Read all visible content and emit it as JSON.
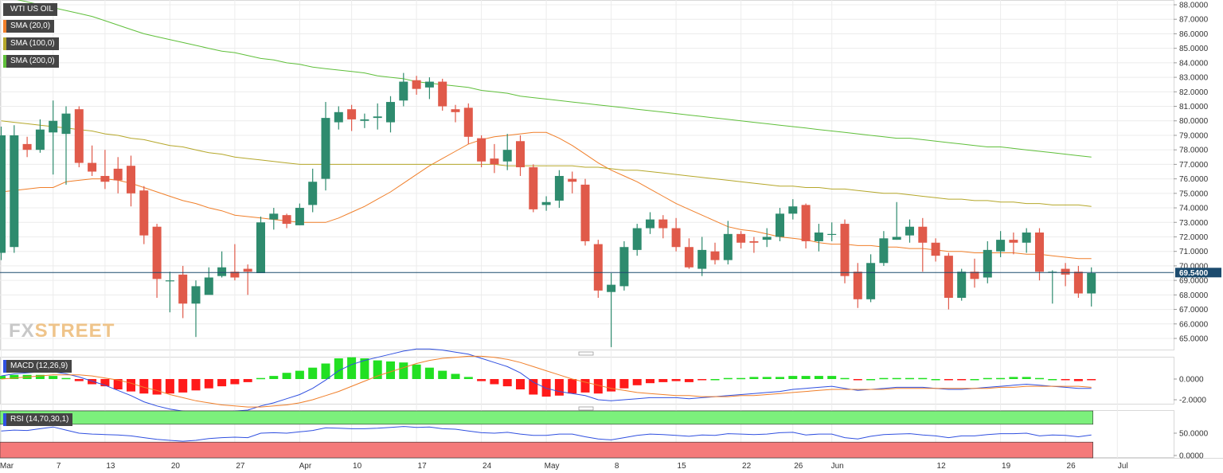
{
  "colors": {
    "bull": "#2e8b6e",
    "bear": "#e05a4a",
    "sma20": "#f07f2a",
    "sma100": "#b5a72a",
    "sma200": "#5fbf3a",
    "macd": "#3050e0",
    "signal": "#f07f2a",
    "histPos": "#22e022",
    "histNeg": "#ff1a1a",
    "rsi": "#3050e0",
    "rsiUpper": "#7cf07c",
    "rsiLower": "#f47a7a",
    "price": "#1c4b6e"
  },
  "watermark": {
    "fx": "FX",
    "street": "STREET"
  },
  "chart_data": {
    "type": "candlestick",
    "title": "WTI US OIL",
    "legend": [
      "WTI US OIL",
      "SMA (20,0)",
      "SMA (100,0)",
      "SMA (200,0)"
    ],
    "last_price": "69.5400",
    "price_axis": {
      "ylim": [
        64.0,
        88.6
      ],
      "ticks": [
        "88.0000",
        "87.0000",
        "86.0000",
        "85.0000",
        "84.0000",
        "83.0000",
        "82.0000",
        "81.0000",
        "80.0000",
        "79.0000",
        "78.0000",
        "77.0000",
        "76.0000",
        "75.0000",
        "74.0000",
        "73.0000",
        "72.0000",
        "71.0000",
        "70.0000",
        "69.0000",
        "68.0000",
        "67.0000",
        "66.0000",
        "65.0000"
      ]
    },
    "x_labels": [
      {
        "label": "Mar",
        "i": 0
      },
      {
        "label": "7",
        "i": 4
      },
      {
        "label": "13",
        "i": 8
      },
      {
        "label": "20",
        "i": 13
      },
      {
        "label": "27",
        "i": 18
      },
      {
        "label": "Apr",
        "i": 23
      },
      {
        "label": "10",
        "i": 27
      },
      {
        "label": "17",
        "i": 32
      },
      {
        "label": "24",
        "i": 37
      },
      {
        "label": "May",
        "i": 42
      },
      {
        "label": "8",
        "i": 47
      },
      {
        "label": "15",
        "i": 52
      },
      {
        "label": "22",
        "i": 57
      },
      {
        "label": "26",
        "i": 61
      },
      {
        "label": "Jun",
        "i": 64
      },
      {
        "label": "12",
        "i": 72
      },
      {
        "label": "19",
        "i": 77
      },
      {
        "label": "26",
        "i": 82
      },
      {
        "label": "Jul",
        "i": 86
      }
    ],
    "candles": [
      [
        70.9,
        79.0,
        79.6,
        70.4
      ],
      [
        71.3,
        79.0,
        79.7,
        70.9
      ],
      [
        78.4,
        78.0,
        78.9,
        77.5
      ],
      [
        78.0,
        79.4,
        80.1,
        77.8
      ],
      [
        79.2,
        80.0,
        81.4,
        76.3
      ],
      [
        79.1,
        80.5,
        81.0,
        75.6
      ],
      [
        80.8,
        77.1,
        81.0,
        76.8
      ],
      [
        77.1,
        76.5,
        78.3,
        76.2
      ],
      [
        76.2,
        75.8,
        78.0,
        75.3
      ],
      [
        76.7,
        75.9,
        77.5,
        75.0
      ],
      [
        76.9,
        75.0,
        77.6,
        74.1
      ],
      [
        75.2,
        72.1,
        75.5,
        71.5
      ],
      [
        72.7,
        69.1,
        72.9,
        67.8
      ],
      [
        69.0,
        69.0,
        69.6,
        66.8
      ],
      [
        69.4,
        67.4,
        70.0,
        66.4
      ],
      [
        67.4,
        68.6,
        69.0,
        65.1
      ],
      [
        68.0,
        69.2,
        69.9,
        68.1
      ],
      [
        69.3,
        69.9,
        71.0,
        69.2
      ],
      [
        69.6,
        69.2,
        71.5,
        69.0
      ],
      [
        69.8,
        69.6,
        70.1,
        68.0
      ],
      [
        69.5,
        73.0,
        73.4,
        69.5
      ],
      [
        73.2,
        73.6,
        74.0,
        72.5
      ],
      [
        73.5,
        72.9,
        73.6,
        72.6
      ],
      [
        72.8,
        74.0,
        74.3,
        72.8
      ],
      [
        74.2,
        75.8,
        76.7,
        73.7
      ],
      [
        76.0,
        80.2,
        81.3,
        75.2
      ],
      [
        79.9,
        80.6,
        81.0,
        79.4
      ],
      [
        80.8,
        80.1,
        81.1,
        79.3
      ],
      [
        80.0,
        80.1,
        80.5,
        79.5
      ],
      [
        80.2,
        80.3,
        81.2,
        79.4
      ],
      [
        79.9,
        81.3,
        81.7,
        79.2
      ],
      [
        81.4,
        82.7,
        83.3,
        81.0
      ],
      [
        82.8,
        82.2,
        83.1,
        81.8
      ],
      [
        82.3,
        82.7,
        83.0,
        81.5
      ],
      [
        82.7,
        81.0,
        82.9,
        80.7
      ],
      [
        80.8,
        80.6,
        81.1,
        79.9
      ],
      [
        80.9,
        78.9,
        81.2,
        78.4
      ],
      [
        78.8,
        77.2,
        79.0,
        76.8
      ],
      [
        77.4,
        77.0,
        78.4,
        76.4
      ],
      [
        77.2,
        78.0,
        79.1,
        76.6
      ],
      [
        78.6,
        76.8,
        79.0,
        76.2
      ],
      [
        76.8,
        73.9,
        77.0,
        73.7
      ],
      [
        74.2,
        74.4,
        74.8,
        73.8
      ],
      [
        74.5,
        76.2,
        76.6,
        74.0
      ],
      [
        76.0,
        75.8,
        76.5,
        75.0
      ],
      [
        75.6,
        71.7,
        76.0,
        71.4
      ],
      [
        71.5,
        68.3,
        71.8,
        67.8
      ],
      [
        68.2,
        68.7,
        69.5,
        64.4
      ],
      [
        68.6,
        71.3,
        71.7,
        68.3
      ],
      [
        71.1,
        72.6,
        72.9,
        70.7
      ],
      [
        72.6,
        73.2,
        73.7,
        72.2
      ],
      [
        73.2,
        72.6,
        73.5,
        71.9
      ],
      [
        72.6,
        71.3,
        73.3,
        71.0
      ],
      [
        71.3,
        69.9,
        71.9,
        69.8
      ],
      [
        69.8,
        71.1,
        72.0,
        69.3
      ],
      [
        71.0,
        70.4,
        71.6,
        70.1
      ],
      [
        70.4,
        72.2,
        73.1,
        70.1
      ],
      [
        72.2,
        71.6,
        72.4,
        71.2
      ],
      [
        71.7,
        71.6,
        72.0,
        70.9
      ],
      [
        71.8,
        72.0,
        72.6,
        71.3
      ],
      [
        72.0,
        73.6,
        74.0,
        71.7
      ],
      [
        73.6,
        74.1,
        74.6,
        73.2
      ],
      [
        74.2,
        71.7,
        74.3,
        71.2
      ],
      [
        71.7,
        72.3,
        72.9,
        71.0
      ],
      [
        72.2,
        72.2,
        73.0,
        71.7
      ],
      [
        72.9,
        69.3,
        73.2,
        68.8
      ],
      [
        69.6,
        67.7,
        70.2,
        67.1
      ],
      [
        67.7,
        70.2,
        70.8,
        67.5
      ],
      [
        70.2,
        71.9,
        72.4,
        70.0
      ],
      [
        71.8,
        72.0,
        74.4,
        71.8
      ],
      [
        72.1,
        72.7,
        73.2,
        71.6
      ],
      [
        72.7,
        71.6,
        73.3,
        69.6
      ],
      [
        71.6,
        70.7,
        71.9,
        70.3
      ],
      [
        70.7,
        67.8,
        70.9,
        67.0
      ],
      [
        67.8,
        69.6,
        69.8,
        67.6
      ],
      [
        69.6,
        69.1,
        70.5,
        68.5
      ],
      [
        69.2,
        71.1,
        71.7,
        68.8
      ],
      [
        71.0,
        71.8,
        72.4,
        70.6
      ],
      [
        71.8,
        71.6,
        72.3,
        70.8
      ],
      [
        71.6,
        72.3,
        72.6,
        70.9
      ],
      [
        72.3,
        69.6,
        72.6,
        69.0
      ],
      [
        69.6,
        69.6,
        69.7,
        67.4
      ],
      [
        69.8,
        69.4,
        70.2,
        68.6
      ],
      [
        69.6,
        68.1,
        70.0,
        67.8
      ],
      [
        68.1,
        69.5,
        69.9,
        67.2
      ]
    ],
    "sma": [
      {
        "name": "SMA (20,0)",
        "values": [
          75.1,
          75.2,
          75.3,
          75.4,
          75.4,
          75.8,
          75.9,
          76.0,
          76.0,
          75.9,
          75.7,
          75.4,
          75.1,
          74.8,
          74.5,
          74.3,
          74.0,
          73.8,
          73.5,
          73.4,
          73.3,
          73.2,
          73.1,
          73.0,
          73.0,
          73.0,
          73.3,
          73.7,
          74.1,
          74.6,
          75.1,
          75.7,
          76.3,
          76.9,
          77.4,
          77.9,
          78.4,
          78.7,
          78.9,
          79.0,
          79.1,
          79.2,
          79.2,
          78.8,
          78.3,
          77.7,
          77.1,
          76.6,
          76.2,
          75.8,
          75.3,
          74.8,
          74.3,
          73.9,
          73.5,
          73.1,
          72.7,
          72.5,
          72.4,
          72.2,
          72.0,
          71.9,
          71.8,
          71.6,
          71.5,
          71.5,
          71.4,
          71.4,
          71.3,
          71.3,
          71.2,
          71.2,
          71.1,
          71.0,
          71.0,
          70.9,
          70.9,
          70.9,
          70.9,
          70.8,
          70.8,
          70.7,
          70.6,
          70.5,
          70.5
        ]
      },
      {
        "name": "SMA (100,0)",
        "values": [
          80.0,
          79.9,
          79.8,
          79.7,
          79.6,
          79.5,
          79.4,
          79.3,
          79.1,
          79.0,
          78.8,
          78.7,
          78.5,
          78.3,
          78.2,
          78.0,
          77.8,
          77.7,
          77.5,
          77.4,
          77.3,
          77.2,
          77.1,
          77.0,
          77.0,
          77.0,
          77.0,
          77.0,
          77.0,
          77.0,
          77.0,
          77.0,
          77.0,
          77.0,
          77.0,
          77.0,
          77.0,
          77.0,
          77.0,
          76.9,
          76.9,
          76.9,
          76.9,
          76.9,
          76.9,
          76.8,
          76.8,
          76.7,
          76.6,
          76.6,
          76.5,
          76.4,
          76.3,
          76.2,
          76.1,
          76.0,
          75.9,
          75.8,
          75.7,
          75.6,
          75.5,
          75.5,
          75.4,
          75.4,
          75.3,
          75.3,
          75.2,
          75.1,
          75.0,
          75.0,
          74.9,
          74.8,
          74.7,
          74.6,
          74.6,
          74.5,
          74.5,
          74.4,
          74.4,
          74.3,
          74.3,
          74.2,
          74.2,
          74.2,
          74.1
        ]
      },
      {
        "name": "SMA (200,0)",
        "values": [
          88.6,
          88.4,
          88.2,
          88.0,
          87.8,
          87.6,
          87.4,
          87.2,
          86.9,
          86.6,
          86.3,
          86.0,
          85.8,
          85.6,
          85.4,
          85.2,
          85.0,
          84.8,
          84.7,
          84.5,
          84.3,
          84.2,
          84.0,
          83.9,
          83.7,
          83.6,
          83.5,
          83.4,
          83.3,
          83.1,
          83.0,
          82.9,
          82.7,
          82.6,
          82.5,
          82.4,
          82.3,
          82.1,
          82.0,
          81.9,
          81.7,
          81.6,
          81.5,
          81.4,
          81.3,
          81.2,
          81.1,
          81.0,
          80.9,
          80.8,
          80.7,
          80.6,
          80.5,
          80.4,
          80.3,
          80.2,
          80.1,
          80.0,
          79.9,
          79.8,
          79.7,
          79.6,
          79.5,
          79.4,
          79.3,
          79.2,
          79.1,
          79.0,
          78.9,
          78.8,
          78.8,
          78.7,
          78.6,
          78.5,
          78.4,
          78.3,
          78.2,
          78.2,
          78.1,
          78.0,
          77.9,
          77.8,
          77.7,
          77.6,
          77.5
        ]
      }
    ],
    "macd_panel": {
      "legend": "MACD (12,26,9)",
      "ticks": [
        "0.0000",
        "-2.0000"
      ],
      "ylim": [
        -3.8,
        3.2
      ],
      "macd": [
        0.3,
        0.5,
        0.6,
        0.7,
        0.7,
        0.5,
        0.2,
        -0.2,
        -0.6,
        -1.1,
        -1.6,
        -2.2,
        -2.6,
        -2.9,
        -3.1,
        -3.2,
        -3.2,
        -3.2,
        -3.1,
        -3.0,
        -2.6,
        -2.3,
        -1.9,
        -1.5,
        -0.9,
        -0.1,
        0.8,
        1.4,
        1.8,
        2.1,
        2.4,
        2.7,
        2.9,
        2.9,
        2.8,
        2.6,
        2.4,
        2.0,
        1.6,
        1.2,
        0.6,
        -0.3,
        -0.9,
        -1.2,
        -1.4,
        -1.6,
        -2.0,
        -2.1,
        -2.0,
        -1.9,
        -1.8,
        -1.8,
        -1.8,
        -1.9,
        -1.8,
        -1.7,
        -1.6,
        -1.5,
        -1.4,
        -1.3,
        -1.2,
        -1.0,
        -0.9,
        -0.8,
        -0.7,
        -0.9,
        -1.1,
        -1.0,
        -0.9,
        -0.8,
        -0.8,
        -0.8,
        -0.9,
        -1.0,
        -1.0,
        -0.9,
        -0.8,
        -0.7,
        -0.6,
        -0.5,
        -0.6,
        -0.7,
        -0.8,
        -0.9,
        -0.9
      ],
      "signal": [
        0.0,
        0.1,
        0.2,
        0.3,
        0.4,
        0.4,
        0.4,
        0.3,
        0.1,
        -0.1,
        -0.4,
        -0.8,
        -1.1,
        -1.5,
        -1.8,
        -2.1,
        -2.3,
        -2.5,
        -2.6,
        -2.7,
        -2.7,
        -2.6,
        -2.5,
        -2.3,
        -2.0,
        -1.6,
        -1.2,
        -0.7,
        -0.2,
        0.3,
        0.7,
        1.1,
        1.5,
        1.8,
        2.0,
        2.1,
        2.2,
        2.2,
        2.1,
        1.9,
        1.6,
        1.2,
        0.8,
        0.4,
        0.0,
        -0.3,
        -0.6,
        -0.9,
        -1.1,
        -1.3,
        -1.4,
        -1.5,
        -1.6,
        -1.6,
        -1.7,
        -1.7,
        -1.7,
        -1.6,
        -1.6,
        -1.5,
        -1.4,
        -1.3,
        -1.2,
        -1.1,
        -1.0,
        -1.0,
        -1.0,
        -1.0,
        -1.0,
        -0.9,
        -0.9,
        -0.9,
        -0.9,
        -0.9,
        -0.9,
        -0.9,
        -0.9,
        -0.8,
        -0.8,
        -0.7,
        -0.7,
        -0.7,
        -0.7,
        -0.7,
        -0.8
      ]
    },
    "rsi_panel": {
      "legend": "RSI (14,70,30,1)",
      "ticks": [
        "50.0000",
        "0.0000"
      ],
      "ylim": [
        0,
        100
      ],
      "upper": 70,
      "lower": 30,
      "values": [
        55,
        57,
        56,
        60,
        64,
        57,
        50,
        48,
        47,
        46,
        44,
        40,
        36,
        34,
        32,
        34,
        38,
        40,
        41,
        40,
        50,
        51,
        50,
        53,
        56,
        62,
        61,
        60,
        60,
        61,
        63,
        65,
        63,
        64,
        60,
        59,
        55,
        51,
        50,
        52,
        48,
        45,
        45,
        48,
        48,
        42,
        37,
        35,
        40,
        45,
        48,
        47,
        45,
        43,
        46,
        45,
        49,
        48,
        47,
        48,
        51,
        52,
        46,
        48,
        48,
        40,
        37,
        43,
        47,
        48,
        49,
        46,
        44,
        40,
        44,
        44,
        47,
        49,
        49,
        50,
        44,
        46,
        45,
        42,
        46
      ]
    }
  }
}
